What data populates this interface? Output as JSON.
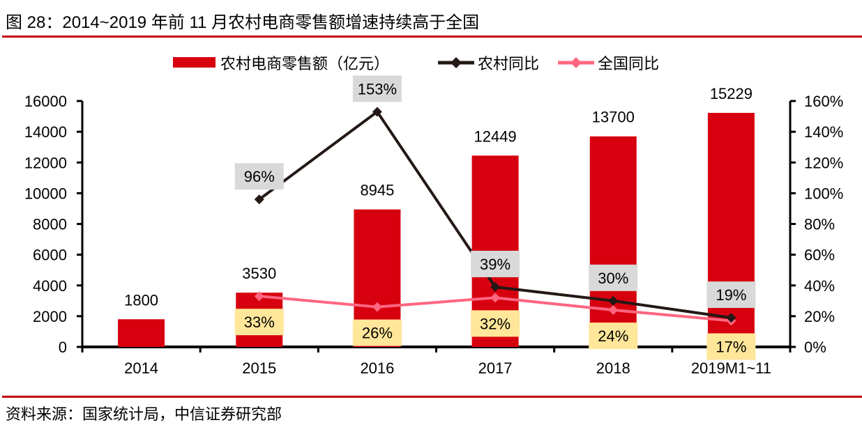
{
  "figure": {
    "title": "图 28：2014~2019 年前 11 月农村电商零售额增速持续高于全国",
    "source": "资料来源：国家统计局，中信证券研究部"
  },
  "colors": {
    "bar": "#d7000f",
    "rural_line": "#231815",
    "national_line": "#ff6680",
    "rule": "#c00000",
    "rural_label_bg": "#d9d9d9",
    "national_label_bg": "#ffe699"
  },
  "chart_data": {
    "type": "bar",
    "title": "2014~2019 年前 11 月农村电商零售额增速持续高于全国",
    "categories": [
      "2014",
      "2015",
      "2016",
      "2017",
      "2018",
      "2019M1~11"
    ],
    "series": [
      {
        "name": "农村电商零售额（亿元）",
        "type": "bar",
        "axis": "left",
        "values": [
          1800,
          3530,
          8945,
          12449,
          13700,
          15229
        ],
        "labels": [
          "1800",
          "3530",
          "8945",
          "12449",
          "13700",
          "15229"
        ]
      },
      {
        "name": "农村同比",
        "type": "line",
        "axis": "right",
        "values": [
          null,
          96,
          153,
          39,
          30,
          19
        ],
        "labels": [
          null,
          "96%",
          "153%",
          "39%",
          "30%",
          "19%"
        ]
      },
      {
        "name": "全国同比",
        "type": "line",
        "axis": "right",
        "values": [
          null,
          33,
          26,
          32,
          24,
          17
        ],
        "labels": [
          null,
          "33%",
          "26%",
          "32%",
          "24%",
          "17%"
        ]
      }
    ],
    "left_axis": {
      "min": 0,
      "max": 16000,
      "step": 2000,
      "ticks": [
        "0",
        "2000",
        "4000",
        "6000",
        "8000",
        "10000",
        "12000",
        "14000",
        "16000"
      ]
    },
    "right_axis": {
      "min": 0,
      "max": 160,
      "step": 20,
      "ticks": [
        "0%",
        "20%",
        "40%",
        "60%",
        "80%",
        "100%",
        "120%",
        "140%",
        "160%"
      ]
    },
    "xlabel": "",
    "ylabel": "",
    "legend": {
      "placement": "top-center",
      "entries": [
        "农村电商零售额（亿元）",
        "农村同比",
        "全国同比"
      ]
    },
    "grid": false
  }
}
